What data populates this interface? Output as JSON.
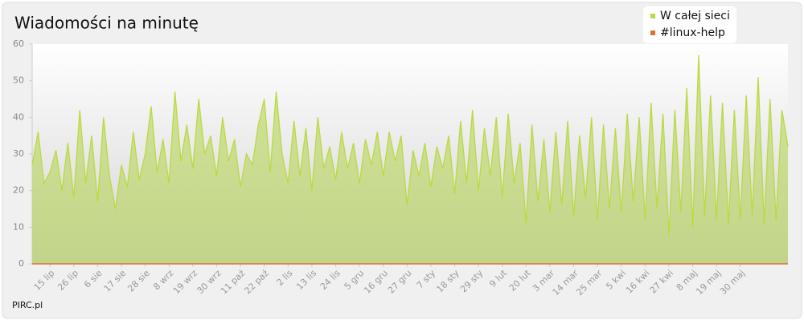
{
  "chart_data": {
    "type": "area",
    "title": "Wiadomości na minutę",
    "footer": "PIRC.pl",
    "categories": [
      null,
      null,
      null,
      "15 lip",
      null,
      null,
      null,
      "26 lip",
      null,
      null,
      null,
      "6 sie",
      null,
      null,
      null,
      "17 sie",
      null,
      null,
      null,
      "28 sie",
      null,
      null,
      null,
      "8 wrz",
      null,
      null,
      null,
      "19 wrz",
      null,
      null,
      null,
      "30 wrz",
      null,
      null,
      null,
      "11 paź",
      null,
      null,
      null,
      "22 paź",
      null,
      null,
      null,
      "2 lis",
      null,
      null,
      null,
      "13 lis",
      null,
      null,
      null,
      "24 lis",
      null,
      null,
      null,
      "5 gru",
      null,
      null,
      null,
      "16 gru",
      null,
      null,
      null,
      "27 gru",
      null,
      null,
      null,
      "7 sty",
      null,
      null,
      null,
      "18 sty",
      null,
      null,
      null,
      "29 sty",
      null,
      null,
      null,
      "9 lut",
      null,
      null,
      null,
      "20 lut",
      null,
      null,
      null,
      "3 mar",
      null,
      null,
      null,
      "14 mar",
      null,
      null,
      null,
      "25 mar",
      null,
      null,
      null,
      "5 kwi",
      null,
      null,
      null,
      "16 kwi",
      null,
      null,
      null,
      "27 kwi",
      null,
      null,
      null,
      "8 maj",
      null,
      null,
      null,
      "19 maj",
      null,
      null,
      null,
      "30 maj",
      null,
      null,
      null,
      null,
      null,
      null,
      null,
      null
    ],
    "series": [
      {
        "name": "W całej sieci",
        "color": "#bada40",
        "values": [
          27,
          36,
          22,
          25,
          31,
          20,
          33,
          18,
          42,
          22,
          35,
          17,
          40,
          24,
          15,
          27,
          21,
          36,
          23,
          30,
          43,
          25,
          34,
          22,
          47,
          28,
          38,
          26,
          45,
          30,
          35,
          24,
          40,
          28,
          34,
          21,
          30,
          27,
          38,
          45,
          25,
          47,
          30,
          22,
          39,
          24,
          37,
          20,
          40,
          26,
          32,
          23,
          36,
          26,
          33,
          22,
          34,
          27,
          36,
          24,
          36,
          28,
          35,
          16,
          31,
          24,
          33,
          21,
          32,
          26,
          35,
          19,
          39,
          22,
          42,
          20,
          37,
          24,
          40,
          18,
          41,
          22,
          33,
          11,
          38,
          17,
          34,
          14,
          36,
          16,
          39,
          13,
          35,
          18,
          40,
          12,
          38,
          15,
          37,
          14,
          41,
          17,
          40,
          12,
          44,
          15,
          41,
          8,
          42,
          14,
          48,
          10,
          57,
          13,
          46,
          12,
          44,
          11,
          42,
          12,
          46,
          13,
          51,
          11,
          45,
          12,
          42,
          32
        ]
      },
      {
        "name": "#linux-help",
        "color": "#e0703a",
        "values": [
          0,
          0,
          0,
          0,
          0,
          0,
          0,
          0,
          0,
          0,
          0,
          0,
          0,
          0,
          0,
          0,
          0,
          0,
          0,
          0,
          0,
          0,
          0,
          0,
          0,
          0,
          0,
          0,
          0,
          0,
          0,
          0,
          0,
          0,
          0,
          0,
          0,
          0,
          0,
          0,
          0,
          0,
          0,
          0,
          0,
          0,
          0,
          0,
          0,
          0,
          0,
          0,
          0,
          0,
          0,
          0,
          0,
          0,
          0,
          0,
          0,
          0,
          0,
          0,
          0,
          0,
          0,
          0,
          0,
          0,
          0,
          0,
          0,
          0,
          0,
          0,
          0,
          0,
          0,
          0,
          0,
          0,
          0,
          0,
          0,
          0,
          0,
          0,
          0,
          0,
          0,
          0,
          0,
          0,
          0,
          0,
          0,
          0,
          0,
          0,
          0,
          0,
          0,
          0,
          0,
          0,
          0,
          0,
          0,
          0,
          0,
          0,
          0,
          0,
          0,
          0,
          0,
          0,
          0,
          0,
          0,
          0,
          0,
          0,
          0,
          0,
          0,
          0
        ]
      }
    ],
    "ylim": [
      0,
      60
    ],
    "yticks": [
      0,
      10,
      20,
      30,
      40,
      50,
      60
    ],
    "grid": false,
    "legend": "top-right"
  }
}
